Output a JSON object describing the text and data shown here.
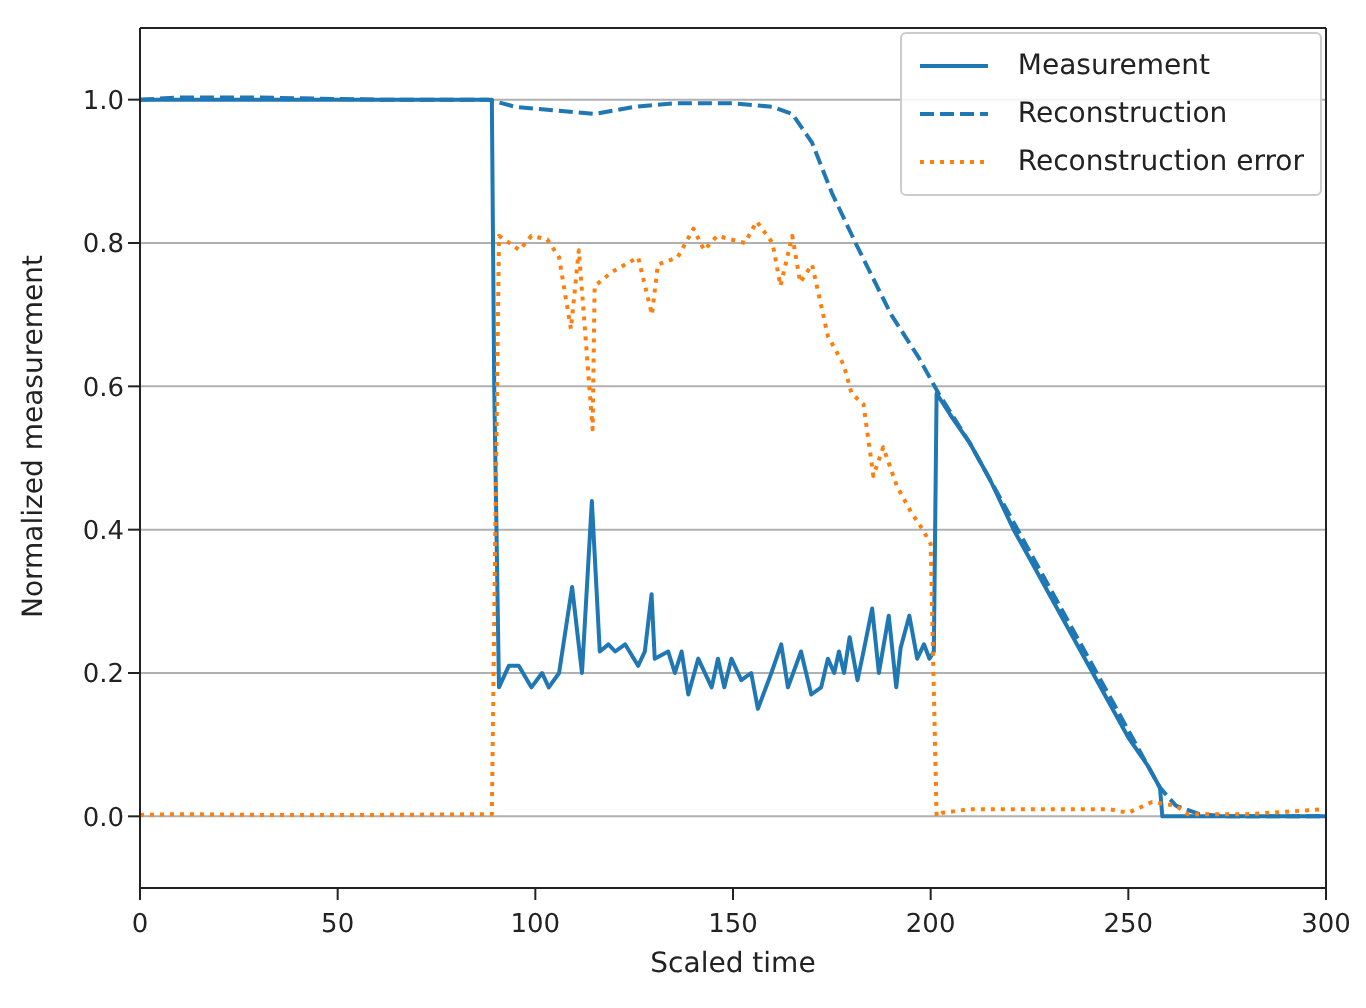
{
  "chart_data": {
    "type": "line",
    "xlabel": "Scaled time",
    "ylabel": "Normalized measurement",
    "xlim": [
      0,
      300
    ],
    "xticks": [
      0,
      50,
      100,
      150,
      200,
      250,
      300
    ],
    "ylim": [
      -0.1,
      1.1
    ],
    "yticks": [
      {
        "value": 0,
        "label": "0.0"
      },
      {
        "value": 0.2,
        "label": "0.2"
      },
      {
        "value": 0.4,
        "label": "0.4"
      },
      {
        "value": 0.6,
        "label": "0.6"
      },
      {
        "value": 0.8,
        "label": "0.8"
      },
      {
        "value": 1,
        "label": "1.0"
      }
    ],
    "grid": "y",
    "legend": "top right",
    "series": [
      {
        "name": "Measurement",
        "color": "#1f77b4",
        "line_style": "solid",
        "x": [
          0,
          30,
          60,
          89,
          89.6,
          90.8,
          93.3,
          95.8,
          99,
          101.7,
          103.4,
          106,
          109.3,
          111.8,
          114.3,
          116.3,
          118.5,
          120.2,
          122.7,
          126,
          127.7,
          129.4,
          130.2,
          133.6,
          135.3,
          137,
          138.7,
          141.2,
          144.6,
          146.2,
          147.8,
          149.6,
          152.1,
          154.6,
          156.3,
          159.7,
          162.2,
          163.9,
          167.2,
          169.8,
          172.3,
          174,
          175.6,
          176.8,
          178.1,
          179.5,
          181.5,
          183.2,
          185.2,
          186.9,
          189.4,
          191.3,
          192.4,
          194.6,
          196.6,
          198.3,
          199.7,
          200.8,
          201.5,
          205,
          210,
          215,
          221,
          225,
          230,
          235,
          241,
          245,
          250,
          255,
          258,
          258.6,
          270,
          285,
          300
        ],
        "values": [
          1.0,
          1.0,
          1.0,
          1.0,
          0.6,
          0.18,
          0.21,
          0.21,
          0.18,
          0.2,
          0.18,
          0.2,
          0.32,
          0.2,
          0.44,
          0.23,
          0.24,
          0.23,
          0.24,
          0.21,
          0.23,
          0.31,
          0.22,
          0.23,
          0.2,
          0.23,
          0.17,
          0.22,
          0.18,
          0.22,
          0.18,
          0.22,
          0.19,
          0.2,
          0.15,
          0.2,
          0.24,
          0.18,
          0.23,
          0.17,
          0.18,
          0.22,
          0.2,
          0.23,
          0.2,
          0.25,
          0.19,
          0.235,
          0.29,
          0.2,
          0.28,
          0.18,
          0.235,
          0.28,
          0.22,
          0.24,
          0.22,
          0.23,
          0.59,
          0.56,
          0.52,
          0.47,
          0.4,
          0.36,
          0.31,
          0.26,
          0.2,
          0.16,
          0.11,
          0.07,
          0.04,
          0.0,
          0.0,
          0.0,
          0.0
        ]
      },
      {
        "name": "Reconstruction",
        "color": "#1f77b4",
        "line_style": "dashed",
        "x": [
          0,
          10,
          30,
          60,
          88,
          95,
          105,
          115,
          125,
          135,
          150,
          160,
          165,
          170,
          175,
          181,
          190,
          197,
          202,
          210,
          220,
          230,
          240,
          250,
          258,
          262,
          268,
          275,
          300
        ],
        "values": [
          1.0,
          1.003,
          1.003,
          1.0,
          1.0,
          0.99,
          0.985,
          0.98,
          0.99,
          0.995,
          0.995,
          0.99,
          0.98,
          0.94,
          0.87,
          0.8,
          0.7,
          0.64,
          0.59,
          0.52,
          0.42,
          0.32,
          0.22,
          0.12,
          0.04,
          0.015,
          0.003,
          0.0,
          0.0
        ]
      },
      {
        "name": "Reconstruction error",
        "color": "#ff7f0e",
        "line_style": "dotted",
        "x": [
          0,
          10,
          30,
          60,
          89,
          90.8,
          96,
          99,
          103,
          106,
          109,
          111,
          114.5,
          115,
          119.5,
          126,
          129.5,
          131,
          136,
          140,
          142.7,
          146,
          153,
          156,
          160,
          162,
          165,
          167,
          170,
          174,
          178,
          180,
          183,
          185.5,
          188,
          191.5,
          195,
          198,
          200,
          201.5,
          203,
          210,
          220,
          230,
          245,
          250,
          256,
          262,
          265,
          280,
          300
        ],
        "values": [
          0.002,
          0.003,
          0.002,
          0.002,
          0.003,
          0.81,
          0.79,
          0.81,
          0.805,
          0.78,
          0.68,
          0.79,
          0.54,
          0.74,
          0.76,
          0.78,
          0.7,
          0.77,
          0.78,
          0.82,
          0.79,
          0.81,
          0.8,
          0.83,
          0.8,
          0.74,
          0.81,
          0.745,
          0.77,
          0.67,
          0.63,
          0.59,
          0.575,
          0.475,
          0.515,
          0.46,
          0.425,
          0.4,
          0.38,
          0.0,
          0.005,
          0.01,
          0.01,
          0.01,
          0.01,
          0.005,
          0.02,
          0.015,
          0.003,
          0.003,
          0.01
        ]
      }
    ]
  }
}
